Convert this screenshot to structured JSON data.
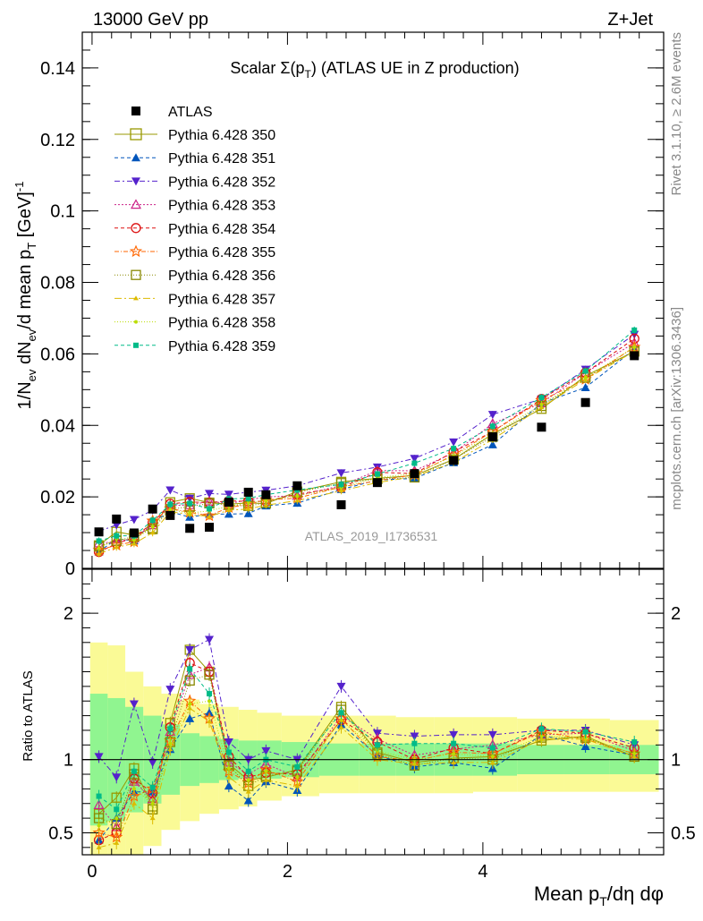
{
  "header": {
    "left_label": "13000 GeV pp",
    "right_label": "Z+Jet"
  },
  "side_labels": {
    "rivet": "Rivet 3.1.10, ≥ 2.6M events",
    "mcplots": "mcplots.cern.ch [arXiv:1306.3436]"
  },
  "chart_data": {
    "type": "scatter",
    "title": "Scalar Σ(pT) (ATLAS UE in Z production)",
    "title_parts": {
      "main": "Scalar Σ(p",
      "sub": "T",
      "tail": ") (ATLAS UE in Z production)"
    },
    "analysis_label": "ATLAS_2019_I1736531",
    "xlabel": "Mean pT/dη dφ",
    "xlabel_parts": {
      "main": "Mean p",
      "sub": "T",
      "tail": "/dη dφ"
    },
    "ylabel": "1/Nev dNev/d mean pT [GeV]-1",
    "ylabel_parts": {
      "a": "1/N",
      "a_sub": "ev",
      "b": " dN",
      "b_sub": "ev",
      "c": "/d mean p",
      "c_sub": "T",
      "d": " [GeV]",
      "d_sup": "-1"
    },
    "ratio_ylabel": "Ratio to ATLAS",
    "xlim": [
      -0.1,
      5.85
    ],
    "ylim": [
      0,
      0.15
    ],
    "ratio_ylim": [
      0.35,
      2.3
    ],
    "xticks": [
      0,
      2,
      4
    ],
    "yticks": [
      0,
      0.02,
      0.04,
      0.06,
      0.08,
      0.1,
      0.12,
      0.14
    ],
    "ytick_labels": [
      "0",
      "0.02",
      "0.04",
      "0.06",
      "0.08",
      "0.1",
      "0.12",
      "0.14"
    ],
    "ratio_yticks": [
      0.5,
      1,
      2
    ],
    "ratio_ytick_labels": [
      "0.5",
      "1",
      "2"
    ],
    "x": [
      0.07,
      0.25,
      0.43,
      0.62,
      0.8,
      1.0,
      1.2,
      1.4,
      1.6,
      1.78,
      2.1,
      2.55,
      2.92,
      3.3,
      3.7,
      4.1,
      4.6,
      5.05,
      5.55
    ],
    "data": {
      "name": "ATLAS",
      "values": [
        0.0102,
        0.0138,
        0.0099,
        0.0166,
        0.0148,
        0.0112,
        0.0115,
        0.0185,
        0.0213,
        0.0206,
        0.0231,
        0.0178,
        0.024,
        0.0265,
        0.0302,
        0.0368,
        0.0395,
        0.0464,
        0.0595
      ]
    },
    "ratio_bands": {
      "inner": [
        0.55,
        0.58,
        0.64,
        0.7,
        0.76,
        0.82,
        0.84,
        0.86,
        0.87,
        0.87,
        0.88,
        0.89,
        0.89,
        0.89,
        0.89,
        0.89,
        0.9,
        0.9,
        0.9
      ],
      "inner_hi": [
        1.45,
        1.42,
        1.36,
        1.3,
        1.24,
        1.18,
        1.16,
        1.14,
        1.13,
        1.13,
        1.12,
        1.11,
        1.11,
        1.11,
        1.11,
        1.11,
        1.1,
        1.1,
        1.1
      ],
      "outer": [
        0.35,
        0.35,
        0.35,
        0.41,
        0.52,
        0.58,
        0.63,
        0.66,
        0.68,
        0.72,
        0.75,
        0.77,
        0.77,
        0.77,
        0.77,
        0.78,
        0.78,
        0.78,
        0.78
      ],
      "outer_hi": [
        1.8,
        1.78,
        1.6,
        1.5,
        1.45,
        1.41,
        1.38,
        1.36,
        1.34,
        1.32,
        1.3,
        1.3,
        1.3,
        1.29,
        1.29,
        1.29,
        1.28,
        1.28,
        1.27
      ],
      "inner_color": "#90f590",
      "outer_color": "#fafa96"
    },
    "series": [
      {
        "name": "Pythia 6.428 350",
        "color": "#999900",
        "marker": "square-open",
        "dash": "none",
        "ratio": [
          0.63,
          0.74,
          0.94,
          0.68,
          1.25,
          1.75,
          1.6,
          0.97,
          0.86,
          0.88,
          0.93,
          1.36,
          1.05,
          0.98,
          1.01,
          1.02,
          1.13,
          1.16,
          1.02
        ]
      },
      {
        "name": "Pythia 6.428 351",
        "color": "#0055bb",
        "marker": "triangle-up",
        "dash": "4,3",
        "ratio": [
          0.45,
          0.6,
          0.78,
          0.78,
          1.07,
          1.28,
          1.32,
          0.82,
          0.72,
          0.85,
          0.79,
          1.24,
          1.03,
          0.95,
          0.98,
          0.94,
          1.17,
          1.09,
          1.03
        ]
      },
      {
        "name": "Pythia 6.428 352",
        "color": "#5522cc",
        "marker": "triangle-down",
        "dash": "6,3,2,3",
        "ratio": [
          1.02,
          0.88,
          1.38,
          0.98,
          1.48,
          1.75,
          1.82,
          1.12,
          1.0,
          1.06,
          1.0,
          1.5,
          1.18,
          1.16,
          1.17,
          1.17,
          1.2,
          1.2,
          1.1
        ]
      },
      {
        "name": "Pythia 6.428 353",
        "color": "#cc2288",
        "marker": "triangle-up-open",
        "dash": "2,2",
        "ratio": [
          0.69,
          0.54,
          0.85,
          0.73,
          1.19,
          1.58,
          1.63,
          0.98,
          0.9,
          0.97,
          0.88,
          1.3,
          1.14,
          1.03,
          1.07,
          1.1,
          1.17,
          1.18,
          1.06
        ]
      },
      {
        "name": "Pythia 6.428 354",
        "color": "#dd1111",
        "marker": "circle-open",
        "dash": "4,3",
        "ratio": [
          0.45,
          0.5,
          0.87,
          0.77,
          1.22,
          1.66,
          1.6,
          1.02,
          0.88,
          0.91,
          0.9,
          1.27,
          1.12,
          1.0,
          1.08,
          1.04,
          1.2,
          1.18,
          1.08
        ]
      },
      {
        "name": "Pythia 6.428 355",
        "color": "#ff6600",
        "marker": "star-open",
        "dash": "5,2,1,2",
        "ratio": [
          0.5,
          0.47,
          0.75,
          0.8,
          1.13,
          1.4,
          1.28,
          0.92,
          0.84,
          0.93,
          0.85,
          1.28,
          1.02,
          0.99,
          1.05,
          1.04,
          1.19,
          1.14,
          1.04
        ]
      },
      {
        "name": "Pythia 6.428 356",
        "color": "#888800",
        "marker": "square-open",
        "dash": "1,2",
        "ratio": [
          0.6,
          0.56,
          0.9,
          0.66,
          1.12,
          1.54,
          1.58,
          0.96,
          0.82,
          0.89,
          0.92,
          1.34,
          1.04,
          0.96,
          1.01,
          1.0,
          1.15,
          1.15,
          1.02
        ]
      },
      {
        "name": "Pythia 6.428 357",
        "color": "#ddbb00",
        "marker": "tri-small",
        "dash": "8,3,2,3",
        "ratio": [
          0.4,
          0.43,
          0.7,
          0.6,
          1.07,
          1.35,
          1.26,
          0.88,
          0.78,
          0.86,
          0.82,
          1.22,
          1.0,
          0.97,
          0.98,
          0.98,
          1.14,
          1.14,
          1.02
        ]
      },
      {
        "name": "Pythia 6.428 358",
        "color": "#bbdd00",
        "marker": "dot",
        "dash": "1,2",
        "ratio": [
          0.55,
          0.6,
          0.8,
          0.7,
          1.11,
          1.38,
          1.4,
          0.94,
          0.86,
          0.92,
          0.88,
          1.27,
          1.06,
          1.0,
          1.04,
          1.02,
          1.16,
          1.15,
          1.04
        ]
      },
      {
        "name": "Pythia 6.428 359",
        "color": "#00bb88",
        "marker": "square-small",
        "dash": "4,3",
        "ratio": [
          0.75,
          0.66,
          0.92,
          0.81,
          1.21,
          1.62,
          1.45,
          1.05,
          0.92,
          1.0,
          0.95,
          1.32,
          1.1,
          1.11,
          1.11,
          1.08,
          1.21,
          1.19,
          1.12
        ]
      }
    ]
  }
}
